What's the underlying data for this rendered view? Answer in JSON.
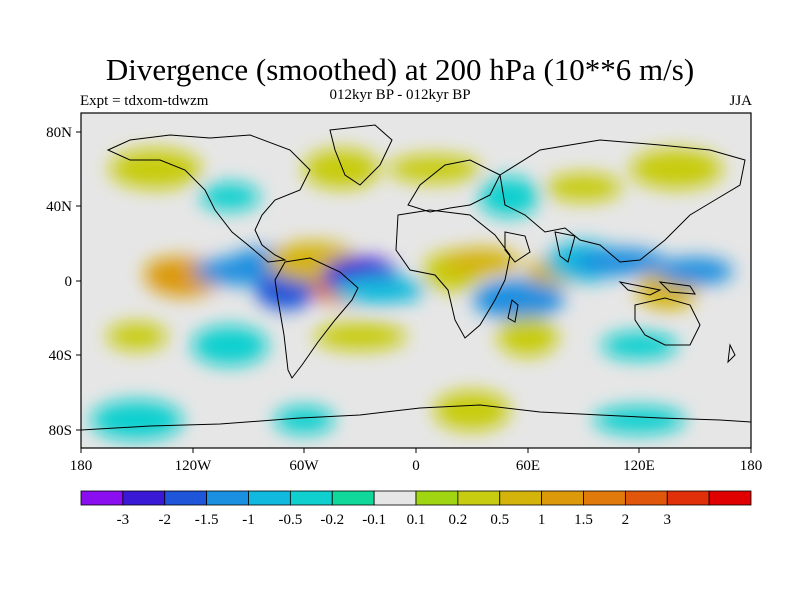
{
  "header": {
    "title": "Divergence (smoothed) at 200 hPa (10**6 m/s)",
    "subtitle": "012kyr BP - 012kyr BP",
    "experiment": "Expt = tdxom-tdwzm",
    "season": "JJA"
  },
  "axes": {
    "lat_ticks": [
      "80N",
      "40N",
      "0",
      "40S",
      "80S"
    ],
    "lon_ticks": [
      "180",
      "120W",
      "60W",
      "0",
      "60E",
      "120E",
      "180"
    ]
  },
  "colorbar": {
    "colors": [
      "#8a0ef0",
      "#3a19d6",
      "#1f55d9",
      "#1b8fe0",
      "#10b9dd",
      "#10d0cf",
      "#10d89a",
      "#e6e6e6",
      "#9fd511",
      "#c8cc10",
      "#d4b40a",
      "#dc9a0a",
      "#e07a0a",
      "#e0560a",
      "#e0300a",
      "#e00000"
    ],
    "labels": [
      "-3",
      "-2",
      "-1.5",
      "-1",
      "-0.5",
      "-0.2",
      "-0.1",
      "0.1",
      "0.2",
      "0.5",
      "1",
      "1.5",
      "2",
      "3"
    ]
  },
  "chart_data": {
    "type": "heatmap",
    "title": "Divergence (smoothed) at 200 hPa (10**6 m/s)",
    "subtitle": "012kyr BP - 012kyr BP",
    "lon_range": [
      -180,
      180
    ],
    "lat_range": [
      -90,
      90
    ],
    "levels": [
      -3,
      -2,
      -1.5,
      -1,
      -0.5,
      -0.2,
      -0.1,
      0.1,
      0.2,
      0.5,
      1,
      1.5,
      2,
      3
    ],
    "blobs": [
      {
        "lon": -130,
        "lat": 5,
        "value": 1.0
      },
      {
        "lon": -125,
        "lat": 2,
        "value": 1.5
      },
      {
        "lon": -95,
        "lat": 5,
        "value": -1.0
      },
      {
        "lon": -70,
        "lat": -5,
        "value": -1.5
      },
      {
        "lon": -80,
        "lat": 10,
        "value": -1.0
      },
      {
        "lon": -55,
        "lat": 10,
        "value": 1.0
      },
      {
        "lon": -40,
        "lat": -5,
        "value": 2.0
      },
      {
        "lon": -30,
        "lat": 2,
        "value": -2.0
      },
      {
        "lon": -20,
        "lat": -5,
        "value": -0.5
      },
      {
        "lon": 20,
        "lat": 5,
        "value": 0.5
      },
      {
        "lon": 35,
        "lat": 10,
        "value": 1.0
      },
      {
        "lon": 55,
        "lat": -10,
        "value": -1.0
      },
      {
        "lon": 75,
        "lat": 5,
        "value": 1.0
      },
      {
        "lon": 90,
        "lat": 10,
        "value": -0.5
      },
      {
        "lon": 110,
        "lat": 10,
        "value": -1.0
      },
      {
        "lon": 135,
        "lat": -5,
        "value": 1.0
      },
      {
        "lon": 150,
        "lat": 5,
        "value": -1.0
      },
      {
        "lon": -140,
        "lat": 60,
        "value": 0.5
      },
      {
        "lon": -100,
        "lat": 45,
        "value": -0.2
      },
      {
        "lon": -40,
        "lat": 60,
        "value": 0.5
      },
      {
        "lon": 10,
        "lat": 60,
        "value": 0.5
      },
      {
        "lon": 50,
        "lat": 45,
        "value": -0.2
      },
      {
        "lon": 90,
        "lat": 50,
        "value": 0.5
      },
      {
        "lon": 140,
        "lat": 60,
        "value": 0.5
      },
      {
        "lon": -150,
        "lat": -30,
        "value": 0.5
      },
      {
        "lon": -100,
        "lat": -35,
        "value": -0.2
      },
      {
        "lon": -30,
        "lat": -30,
        "value": 0.5
      },
      {
        "lon": 60,
        "lat": -30,
        "value": 0.5
      },
      {
        "lon": 120,
        "lat": -35,
        "value": -0.2
      },
      {
        "lon": -150,
        "lat": -75,
        "value": -0.2
      },
      {
        "lon": -60,
        "lat": -75,
        "value": -0.2
      },
      {
        "lon": 30,
        "lat": -70,
        "value": 0.5
      },
      {
        "lon": 120,
        "lat": -75,
        "value": -0.2
      }
    ]
  }
}
